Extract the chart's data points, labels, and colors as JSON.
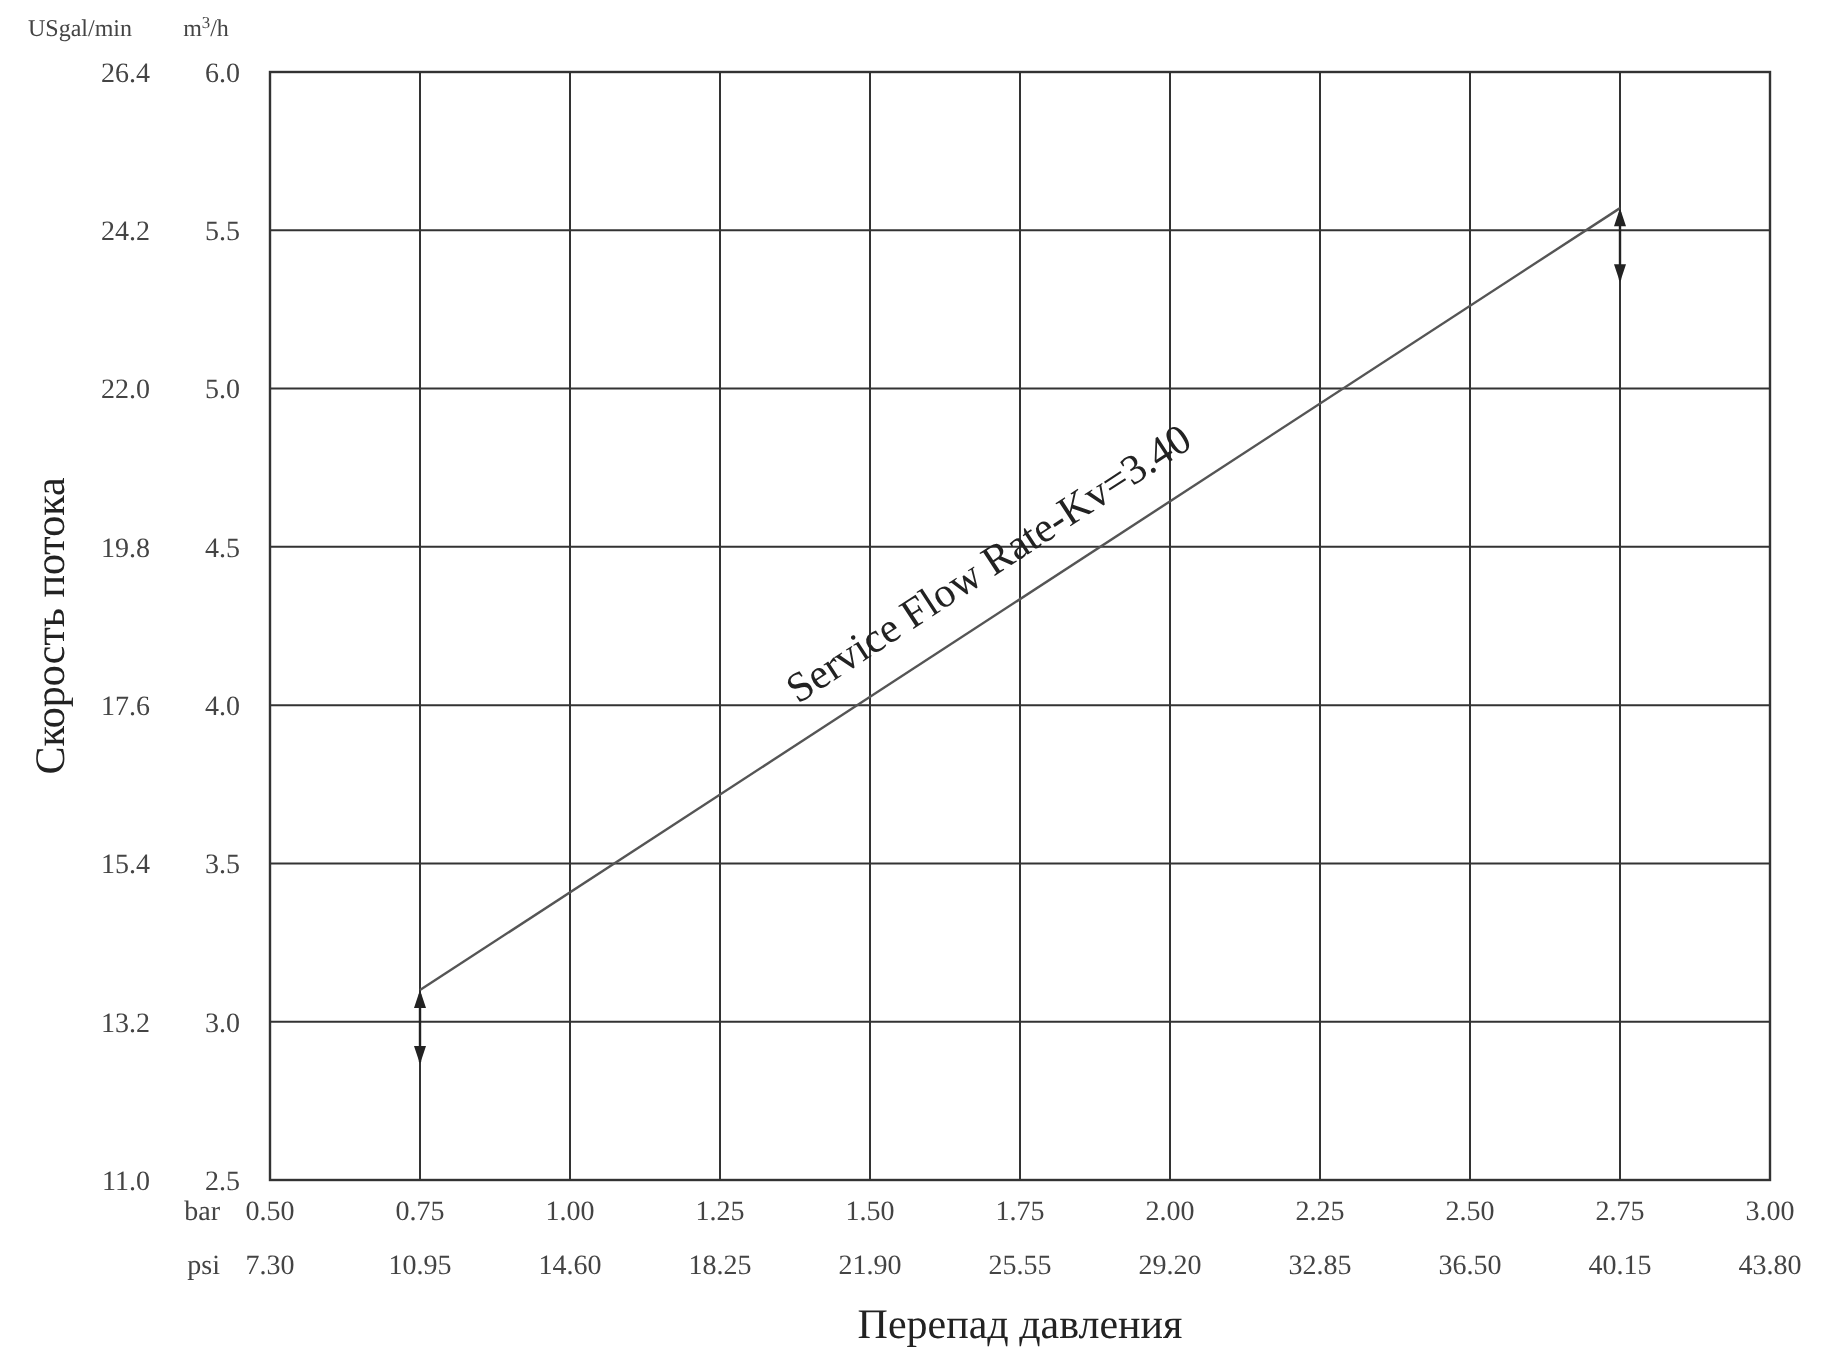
{
  "chart_data": {
    "type": "line",
    "xlabel": "Перепад давления",
    "ylabel": "Скорость потока",
    "x": [
      0.75,
      2.75
    ],
    "series": [
      {
        "name": "Service Flow Rate-Kv=3.40",
        "color": "#555555",
        "values": [
          3.1,
          5.57
        ],
        "axis": "y2"
      }
    ],
    "xlim": [
      0.5,
      3.0
    ],
    "xticks": [
      {
        "value": 0.5,
        "label": "0.50"
      },
      {
        "value": 0.75,
        "label": "0.75"
      },
      {
        "value": 1,
        "label": "1.00"
      },
      {
        "value": 1.25,
        "label": "1.25"
      },
      {
        "value": 1.5,
        "label": "1.50"
      },
      {
        "value": 1.75,
        "label": "1.75"
      },
      {
        "value": 2,
        "label": "2.00"
      },
      {
        "value": 2.25,
        "label": "2.25"
      },
      {
        "value": 2.5,
        "label": "2.50"
      },
      {
        "value": 2.75,
        "label": "2.75"
      },
      {
        "value": 3,
        "label": "3.00"
      }
    ],
    "x2lim": [
      7.3,
      43.8
    ],
    "x2ticks": [
      {
        "value": 7.3,
        "label": "7.30"
      },
      {
        "value": 10.95,
        "label": "10.95"
      },
      {
        "value": 14.6,
        "label": "14.60"
      },
      {
        "value": 18.25,
        "label": "18.25"
      },
      {
        "value": 21.9,
        "label": "21.90"
      },
      {
        "value": 25.55,
        "label": "25.55"
      },
      {
        "value": 29.2,
        "label": "29.20"
      },
      {
        "value": 32.85,
        "label": "32.85"
      },
      {
        "value": 36.5,
        "label": "36.50"
      },
      {
        "value": 40.15,
        "label": "40.15"
      },
      {
        "value": 43.8,
        "label": "43.80"
      }
    ],
    "ylim": [
      11.0,
      26.4
    ],
    "yticks": [
      {
        "value": 11,
        "label": "11.0"
      },
      13.2,
      15.4,
      17.6,
      19.8,
      {
        "value": 22,
        "label": "22.0"
      },
      24.2,
      26.4
    ],
    "y2lim": [
      2.5,
      6.0
    ],
    "y2ticks": [
      2.5,
      {
        "value": 3,
        "label": "3.0"
      },
      3.5,
      {
        "value": 4,
        "label": "4.0"
      },
      4.5,
      {
        "value": 5,
        "label": "5.0"
      },
      5.5,
      {
        "value": 6,
        "label": "6.0"
      }
    ],
    "annotations": [
      "bar",
      "psi",
      "m$^{3}$/h",
      "USgal/min"
    ],
    "grid": true,
    "marker": "none",
    "line_style": "solid"
  }
}
